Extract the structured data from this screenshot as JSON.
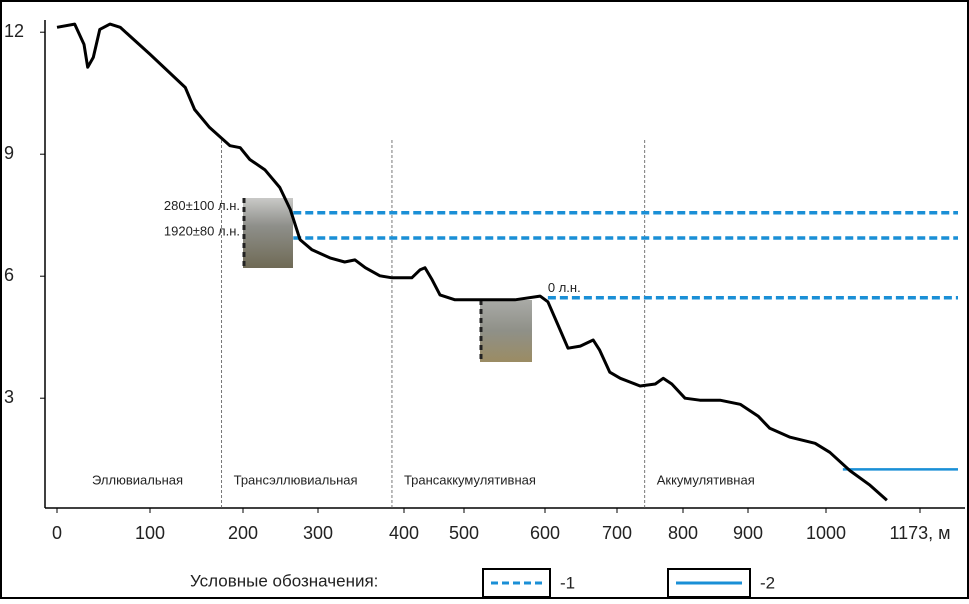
{
  "chart_data": {
    "type": "line",
    "xlim": [
      -13,
      1256
    ],
    "xticks": [
      0,
      100,
      200,
      300,
      400,
      500,
      600,
      700,
      800,
      900,
      1000,
      {
        "value": 1173,
        "label": "1173, м"
      }
    ],
    "ylim": [
      0.3,
      12.3
    ],
    "yticks": [
      3,
      6,
      9,
      12
    ],
    "series": [
      {
        "color": "#000000",
        "x": [
          0,
          19,
          29,
          33,
          39,
          46,
          57,
          68,
          100,
          138,
          148,
          164,
          186,
          197,
          209,
          229,
          249,
          263,
          276,
          292,
          314,
          331,
          343,
          355,
          372,
          386,
          413,
          427,
          435,
          447,
          460,
          485,
          526,
          563,
          594,
          604,
          618,
          632,
          649,
          667,
          676,
          690,
          705,
          735,
          758,
          770,
          783,
          803,
          826,
          857,
          888,
          913,
          928,
          954,
          986,
          1007,
          1044,
          1081,
          1112
        ],
        "values": [
          12.12,
          12.2,
          11.7,
          11.14,
          11.38,
          12.07,
          12.2,
          12.12,
          11.46,
          10.64,
          10.1,
          9.66,
          9.21,
          9.16,
          8.87,
          8.62,
          8.18,
          7.64,
          6.9,
          6.65,
          6.45,
          6.35,
          6.4,
          6.21,
          6.01,
          5.96,
          5.96,
          6.16,
          6.21,
          5.91,
          5.54,
          5.42,
          5.42,
          5.42,
          5.51,
          5.37,
          4.8,
          4.23,
          4.28,
          4.43,
          4.18,
          3.64,
          3.49,
          3.3,
          3.35,
          3.49,
          3.35,
          3.0,
          2.95,
          2.95,
          2.85,
          2.56,
          2.26,
          2.04,
          1.89,
          1.67,
          1.22,
          0.86,
          0.49
        ]
      }
    ],
    "zones": {
      "names": [
        "Эллювиальная",
        "Трансэллювиальная",
        "Трансаккумулятивная",
        "Аккумулятивная"
      ],
      "bounds": [
        177,
        386,
        742
      ]
    },
    "level_color": "#1a8fd6",
    "levels": [
      {
        "label": "280±100 л.н.",
        "y": 7.56,
        "x": 267,
        "style": "dashed"
      },
      {
        "label": "1920±80 л.н.",
        "y": 6.94,
        "x": 267,
        "style": "dashed"
      },
      {
        "label": "0 л.н.",
        "y": 5.47,
        "x": 604,
        "style": "dashed"
      },
      {
        "y": 1.25,
        "x": 1031,
        "style": "solid"
      }
    ],
    "legend": {
      "title": "Условные обозначения:",
      "items": [
        {
          "label": "-1",
          "style": "dashed"
        },
        {
          "label": "-2",
          "style": "solid"
        }
      ]
    }
  }
}
